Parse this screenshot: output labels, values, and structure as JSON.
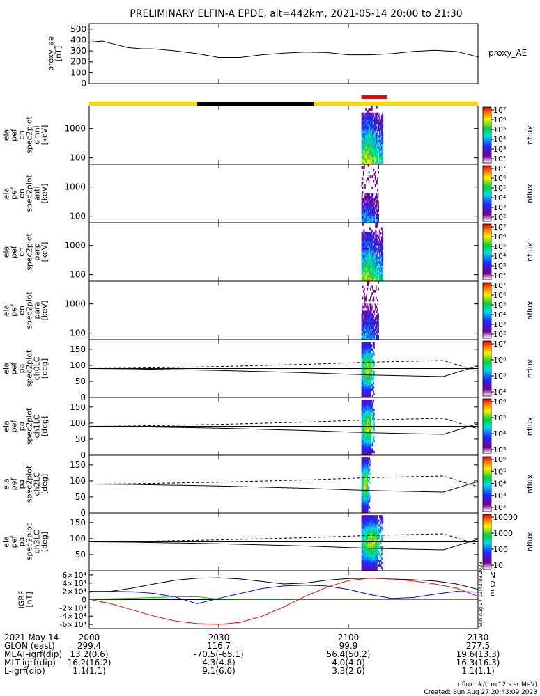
{
  "title": "PRELIMINARY ELFIN-A EPDE, alt=442km, 2021-05-14 20:00 to 21:30",
  "colors": {
    "orbit_sunlit": "#ffd700",
    "orbit_eclipse": "#000000",
    "science_zone": "#ff0000",
    "bx": "#0000ff",
    "by": "#00c800",
    "bz": "#ff0000",
    "btot": "#000000"
  },
  "orbit_bar": {
    "segments": [
      {
        "start": 0,
        "end": 25,
        "state": "sunlit"
      },
      {
        "start": 25,
        "end": 52,
        "state": "eclipse"
      },
      {
        "start": 52,
        "end": 90,
        "state": "sunlit"
      }
    ],
    "science_zone": {
      "start": 63,
      "end": 69
    }
  },
  "chart_data": [
    {
      "type": "line",
      "name": "proxy_ae",
      "ylabel": "proxy_ae\n[nT]",
      "ylim": [
        0,
        550
      ],
      "yticks": [
        0,
        100,
        200,
        300,
        400,
        500
      ],
      "legend": "proxy_AE",
      "x_minutes": [
        0,
        3,
        6,
        9,
        12,
        15,
        20,
        25,
        30,
        35,
        40,
        45,
        50,
        55,
        60,
        65,
        70,
        75,
        80,
        85,
        90
      ],
      "values": [
        380,
        390,
        360,
        330,
        320,
        318,
        300,
        275,
        240,
        240,
        265,
        280,
        290,
        285,
        265,
        265,
        275,
        295,
        305,
        295,
        245
      ]
    },
    {
      "type": "heatmap",
      "name": "omni",
      "ylabel": "ela\npef\nen\nspec2plot\nomni\n[keV]",
      "yscale": "log",
      "ylim": [
        60,
        6000
      ],
      "yticks": [
        100,
        1000
      ],
      "zlabel": "nflux",
      "zlim": [
        10,
        10000000
      ],
      "zticks": [
        "10⁷",
        "10⁶",
        "10⁵",
        "10⁴",
        "10³",
        "10²"
      ],
      "time_range_minutes": [
        63,
        68
      ],
      "peak_intensity": 0.95,
      "energy_cutoff_kev": 3000
    },
    {
      "type": "heatmap",
      "name": "anti",
      "ylabel": "ela\npef\nen\nspec2plot\nanti\n[keV]",
      "yscale": "log",
      "ylim": [
        60,
        6000
      ],
      "yticks": [
        100,
        1000
      ],
      "zlabel": "nflux",
      "zlim": [
        10,
        10000000
      ],
      "zticks": [
        "10⁷",
        "10⁶",
        "10⁵",
        "10⁴",
        "10³",
        "10²"
      ],
      "time_range_minutes": [
        63,
        67
      ],
      "peak_intensity": 0.6,
      "energy_cutoff_kev": 600
    },
    {
      "type": "heatmap",
      "name": "perp",
      "ylabel": "ela\npef\nen\nspec2plot\nperp\n[keV]",
      "yscale": "log",
      "ylim": [
        60,
        6000
      ],
      "yticks": [
        100,
        1000
      ],
      "zlabel": "nflux",
      "zlim": [
        10,
        10000000
      ],
      "zticks": [
        "10⁷",
        "10⁶",
        "10⁵",
        "10⁴",
        "10³",
        "10²"
      ],
      "time_range_minutes": [
        63,
        68
      ],
      "peak_intensity": 0.9,
      "energy_cutoff_kev": 2500
    },
    {
      "type": "heatmap",
      "name": "para",
      "ylabel": "ela\npef\nen\nspec2plot\npara\n[keV]",
      "yscale": "log",
      "ylim": [
        60,
        6000
      ],
      "yticks": [
        100,
        1000
      ],
      "zlabel": "nflux",
      "zlim": [
        10,
        10000000
      ],
      "zticks": [
        "10⁷",
        "10⁶",
        "10⁵",
        "10⁴",
        "10³",
        "10²"
      ],
      "time_range_minutes": [
        63,
        67
      ],
      "peak_intensity": 0.6,
      "energy_cutoff_kev": 900
    },
    {
      "type": "heatmap",
      "name": "ch0LC",
      "ylabel": "ela\npef\npa\nspec2plot\nch0LC\n[deg]",
      "ylim": [
        0,
        180
      ],
      "yticks": [
        0,
        50,
        100,
        150
      ],
      "zlabel": "nflux",
      "zlim": [
        1000,
        10000000
      ],
      "zticks": [
        "10⁷",
        "10⁶",
        "10⁵",
        "10⁴"
      ],
      "time_range_minutes": [
        63,
        66
      ],
      "lc_solid_minutes": [
        0,
        10,
        30,
        50,
        65,
        75,
        82,
        90
      ],
      "lc_solid_deg": [
        90,
        89,
        84,
        77,
        70,
        67,
        65,
        98
      ],
      "lc_dashed_minutes": [
        0,
        10,
        30,
        50,
        65,
        75,
        82,
        90
      ],
      "lc_dashed_deg": [
        90,
        91,
        96,
        103,
        110,
        113,
        115,
        82
      ]
    },
    {
      "type": "heatmap",
      "name": "ch1LC",
      "ylabel": "ela\npef\npa\nspec2plot\nch1LC\n[deg]",
      "ylim": [
        0,
        180
      ],
      "yticks": [
        0,
        50,
        100,
        150
      ],
      "zlabel": "nflux",
      "zlim": [
        100,
        10000000
      ],
      "zticks": [
        "10⁶",
        "10⁵",
        "10⁴",
        "10³"
      ],
      "time_range_minutes": [
        63,
        66
      ],
      "lc_solid_minutes": [
        0,
        10,
        30,
        50,
        65,
        75,
        82,
        90
      ],
      "lc_solid_deg": [
        90,
        89,
        84,
        77,
        70,
        67,
        65,
        98
      ],
      "lc_dashed_minutes": [
        0,
        10,
        30,
        50,
        65,
        75,
        82,
        90
      ],
      "lc_dashed_deg": [
        90,
        91,
        96,
        103,
        110,
        113,
        115,
        82
      ]
    },
    {
      "type": "heatmap",
      "name": "ch2LC",
      "ylabel": "ela\npef\npa\nspec2plot\nch2LC\n[deg]",
      "ylim": [
        0,
        180
      ],
      "yticks": [
        0,
        50,
        100,
        150
      ],
      "zlabel": "nflux",
      "zlim": [
        100,
        10000000
      ],
      "zticks": [
        "10⁶",
        "10⁵",
        "10⁴",
        "10³",
        "10²"
      ],
      "time_range_minutes": [
        63,
        65
      ],
      "lc_solid_minutes": [
        0,
        10,
        30,
        50,
        65,
        75,
        82,
        90
      ],
      "lc_solid_deg": [
        90,
        89,
        84,
        77,
        70,
        67,
        65,
        98
      ],
      "lc_dashed_minutes": [
        0,
        10,
        30,
        50,
        65,
        75,
        82,
        90
      ],
      "lc_dashed_deg": [
        90,
        91,
        96,
        103,
        110,
        113,
        115,
        82
      ]
    },
    {
      "type": "heatmap",
      "name": "ch3LC",
      "ylabel": "ela\npef\npa\nspec2plot\nch3LC\n[deg]",
      "ylim": [
        0,
        180
      ],
      "yticks": [
        50,
        100,
        150
      ],
      "zlabel": "nflux",
      "zlim": [
        10,
        10000
      ],
      "zticks": [
        "10000",
        "1000",
        "100",
        "10"
      ],
      "time_range_minutes": [
        63,
        68
      ],
      "lc_solid_minutes": [
        0,
        10,
        30,
        50,
        65,
        75,
        82,
        90
      ],
      "lc_solid_deg": [
        90,
        89,
        84,
        77,
        70,
        67,
        65,
        98
      ],
      "lc_dashed_minutes": [
        0,
        10,
        30,
        50,
        65,
        75,
        82,
        90
      ],
      "lc_dashed_deg": [
        90,
        91,
        96,
        103,
        110,
        113,
        115,
        82
      ]
    },
    {
      "type": "line",
      "name": "IGRF",
      "ylabel": "IGRF\n[nT]",
      "ylim": [
        -70000,
        70000
      ],
      "yticks": [
        "-6×10⁴",
        "-4×10⁴",
        "-2×10⁴",
        "0",
        "2×10⁴",
        "4×10⁴",
        "6×10⁴"
      ],
      "ytick_values": [
        -60000,
        -40000,
        -20000,
        0,
        20000,
        40000,
        60000
      ],
      "legend": [
        "N",
        "D",
        "E"
      ],
      "x_minutes": [
        0,
        5,
        10,
        15,
        20,
        25,
        30,
        35,
        40,
        45,
        50,
        55,
        60,
        65,
        70,
        75,
        80,
        85,
        90
      ],
      "series": [
        {
          "color": "btot",
          "values": [
            18000,
            20000,
            28000,
            38000,
            47000,
            52000,
            53000,
            50000,
            44000,
            38000,
            40000,
            47000,
            51000,
            52000,
            50000,
            48000,
            45000,
            38000,
            25000
          ]
        },
        {
          "color": "bx",
          "values": [
            20000,
            20000,
            19000,
            15000,
            6000,
            -10000,
            3000,
            15000,
            27000,
            33000,
            35000,
            33000,
            25000,
            12000,
            3000,
            5000,
            13000,
            20000,
            18000
          ]
        },
        {
          "color": "by",
          "values": [
            500,
            2000,
            3500,
            5000,
            6500,
            7000,
            1000,
            500,
            400,
            300,
            200,
            200,
            200,
            100,
            0,
            0,
            0,
            0,
            0
          ]
        },
        {
          "color": "bz",
          "values": [
            1000,
            -10000,
            -25000,
            -40000,
            -52000,
            -58000,
            -60000,
            -55000,
            -40000,
            -18000,
            8000,
            30000,
            46000,
            52000,
            50000,
            45000,
            38000,
            28000,
            8000
          ]
        }
      ]
    }
  ],
  "footer": {
    "rows": [
      {
        "label": "2021 May 14",
        "values": [
          "2000",
          "2030",
          "2100",
          "2130"
        ]
      },
      {
        "label": "GLON (east)",
        "values": [
          "299.4",
          "116.7",
          "99.9",
          "277.5"
        ]
      },
      {
        "label": "MLAT-igrf(dip)",
        "values": [
          "13.2(0.6)",
          "-70.5(-65.1)",
          "56.4(50.2)",
          "19.6(13.3)"
        ]
      },
      {
        "label": "MLT-igrf(dip)",
        "values": [
          "16.2(16.2)",
          "4.3(4.8)",
          "4.0(4.0)",
          "16.3(16.3)"
        ]
      },
      {
        "label": "L-igrf(dip)",
        "values": [
          "1.1(1.1)",
          "9.1(6.0)",
          "3.3(2.6)",
          "1.1(1.1)"
        ]
      }
    ],
    "nflux_units": "nflux: #/(cm^2 s sr MeV)",
    "created": "Created: Sun Aug 27 20:43:09 2023",
    "side_created": "Sun Aug 27 12:43:09 2023"
  }
}
